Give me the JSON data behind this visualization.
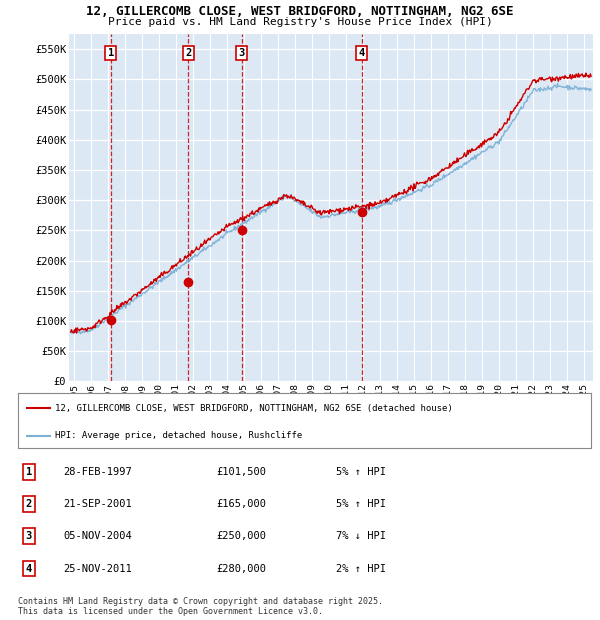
{
  "title_line1": "12, GILLERCOMB CLOSE, WEST BRIDGFORD, NOTTINGHAM, NG2 6SE",
  "title_line2": "Price paid vs. HM Land Registry's House Price Index (HPI)",
  "ylabel_ticks": [
    "£0",
    "£50K",
    "£100K",
    "£150K",
    "£200K",
    "£250K",
    "£300K",
    "£350K",
    "£400K",
    "£450K",
    "£500K",
    "£550K"
  ],
  "ytick_values": [
    0,
    50000,
    100000,
    150000,
    200000,
    250000,
    300000,
    350000,
    400000,
    450000,
    500000,
    550000
  ],
  "ylim": [
    0,
    575000
  ],
  "xlim_start": 1994.7,
  "xlim_end": 2025.5,
  "plot_bg_color": "#dce9f5",
  "grid_color": "#ffffff",
  "red_line_color": "#cc0000",
  "blue_line_color": "#7bafd4",
  "dashed_line_color": "#cc0000",
  "transactions": [
    {
      "num": 1,
      "date": "28-FEB-1997",
      "price": 101500,
      "year": 1997.15
    },
    {
      "num": 2,
      "date": "21-SEP-2001",
      "price": 165000,
      "year": 2001.72
    },
    {
      "num": 3,
      "date": "05-NOV-2004",
      "price": 250000,
      "year": 2004.85
    },
    {
      "num": 4,
      "date": "25-NOV-2011",
      "price": 280000,
      "year": 2011.9
    }
  ],
  "legend_entries": [
    "12, GILLERCOMB CLOSE, WEST BRIDGFORD, NOTTINGHAM, NG2 6SE (detached house)",
    "HPI: Average price, detached house, Rushcliffe"
  ],
  "footer_line1": "Contains HM Land Registry data © Crown copyright and database right 2025.",
  "footer_line2": "This data is licensed under the Open Government Licence v3.0.",
  "table_rows": [
    [
      "1",
      "28-FEB-1997",
      "£101,500",
      "5% ↑ HPI"
    ],
    [
      "2",
      "21-SEP-2001",
      "£165,000",
      "5% ↑ HPI"
    ],
    [
      "3",
      "05-NOV-2004",
      "£250,000",
      "7% ↓ HPI"
    ],
    [
      "4",
      "25-NOV-2011",
      "£280,000",
      "2% ↑ HPI"
    ]
  ]
}
